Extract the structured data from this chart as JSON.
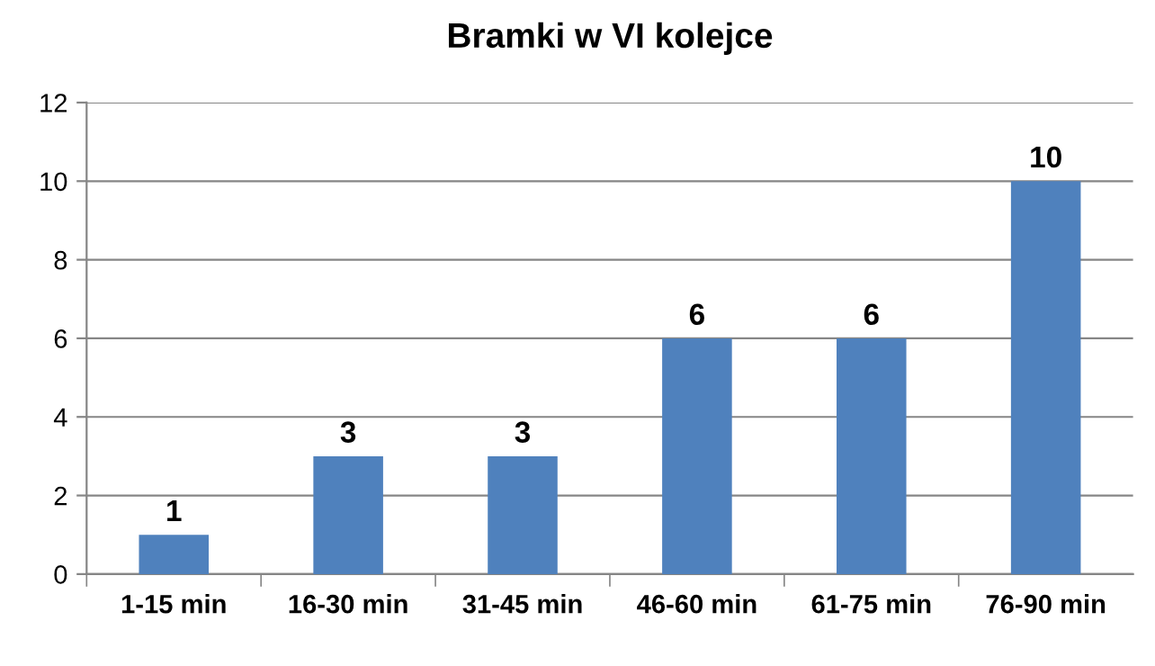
{
  "chart_data": {
    "type": "bar",
    "title": "Bramki w VI kolejce",
    "categories": [
      "1-15 min",
      "16-30 min",
      "31-45 min",
      "46-60 min",
      "61-75 min",
      "76-90 min"
    ],
    "values": [
      1,
      3,
      3,
      6,
      6,
      10
    ],
    "color": "#4f81bd",
    "ylim": [
      0,
      12
    ],
    "yticks": [
      0,
      2,
      4,
      6,
      8,
      10,
      12
    ],
    "grid": "y",
    "data_labels": true
  }
}
